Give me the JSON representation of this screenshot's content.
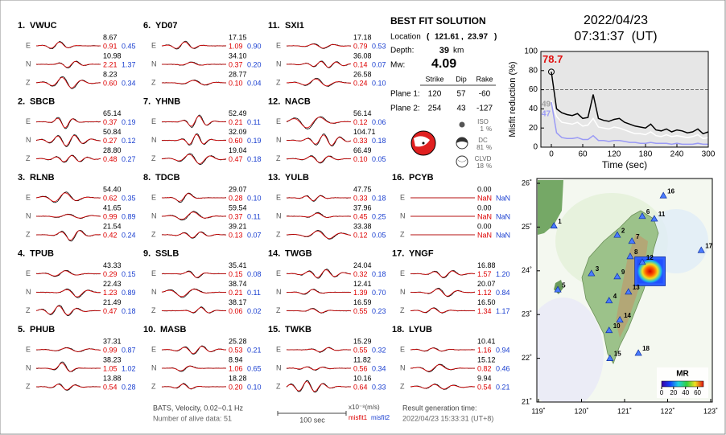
{
  "stations": [
    {
      "id": "1.",
      "code": "VWUC",
      "components": [
        {
          "comp": "E",
          "amplitude": "8.67",
          "misfit1": "0.91",
          "misfit2": "0.45"
        },
        {
          "comp": "N",
          "amplitude": "10.98",
          "misfit1": "2.21",
          "misfit2": "1.37"
        },
        {
          "comp": "Z",
          "amplitude": "8.23",
          "misfit1": "0.60",
          "misfit2": "0.34"
        }
      ]
    },
    {
      "id": "2.",
      "code": "SBCB",
      "components": [
        {
          "comp": "E",
          "amplitude": "65.14",
          "misfit1": "0.37",
          "misfit2": "0.19"
        },
        {
          "comp": "N",
          "amplitude": "50.84",
          "misfit1": "0.27",
          "misfit2": "0.12"
        },
        {
          "comp": "Z",
          "amplitude": "28.80",
          "misfit1": "0.48",
          "misfit2": "0.27"
        }
      ]
    },
    {
      "id": "3.",
      "code": "RLNB",
      "components": [
        {
          "comp": "E",
          "amplitude": "54.40",
          "misfit1": "0.62",
          "misfit2": "0.35"
        },
        {
          "comp": "N",
          "amplitude": "41.65",
          "misfit1": "0.99",
          "misfit2": "0.89"
        },
        {
          "comp": "Z",
          "amplitude": "21.54",
          "misfit1": "0.42",
          "misfit2": "0.24"
        }
      ]
    },
    {
      "id": "4.",
      "code": "TPUB",
      "components": [
        {
          "comp": "E",
          "amplitude": "43.33",
          "misfit1": "0.29",
          "misfit2": "0.15"
        },
        {
          "comp": "N",
          "amplitude": "22.43",
          "misfit1": "1.23",
          "misfit2": "0.89"
        },
        {
          "comp": "Z",
          "amplitude": "21.49",
          "misfit1": "0.47",
          "misfit2": "0.18"
        }
      ]
    },
    {
      "id": "5.",
      "code": "PHUB",
      "components": [
        {
          "comp": "E",
          "amplitude": "37.31",
          "misfit1": "0.99",
          "misfit2": "0.87"
        },
        {
          "comp": "N",
          "amplitude": "38.23",
          "misfit1": "1.05",
          "misfit2": "1.02"
        },
        {
          "comp": "Z",
          "amplitude": "13.88",
          "misfit1": "0.54",
          "misfit2": "0.28"
        }
      ]
    },
    {
      "id": "6.",
      "code": "YD07",
      "components": [
        {
          "comp": "E",
          "amplitude": "17.15",
          "misfit1": "1.09",
          "misfit2": "0.90"
        },
        {
          "comp": "N",
          "amplitude": "34.10",
          "misfit1": "0.37",
          "misfit2": "0.20"
        },
        {
          "comp": "Z",
          "amplitude": "28.77",
          "misfit1": "0.10",
          "misfit2": "0.04"
        }
      ]
    },
    {
      "id": "7.",
      "code": "YHNB",
      "components": [
        {
          "comp": "E",
          "amplitude": "52.49",
          "misfit1": "0.21",
          "misfit2": "0.11"
        },
        {
          "comp": "N",
          "amplitude": "32.09",
          "misfit1": "0.60",
          "misfit2": "0.19"
        },
        {
          "comp": "Z",
          "amplitude": "19.04",
          "misfit1": "0.47",
          "misfit2": "0.18"
        }
      ]
    },
    {
      "id": "8.",
      "code": "TDCB",
      "components": [
        {
          "comp": "E",
          "amplitude": "29.07",
          "misfit1": "0.28",
          "misfit2": "0.10"
        },
        {
          "comp": "N",
          "amplitude": "59.54",
          "misfit1": "0.37",
          "misfit2": "0.11"
        },
        {
          "comp": "Z",
          "amplitude": "39.21",
          "misfit1": "0.13",
          "misfit2": "0.07"
        }
      ]
    },
    {
      "id": "9.",
      "code": "SSLB",
      "components": [
        {
          "comp": "E",
          "amplitude": "35.41",
          "misfit1": "0.15",
          "misfit2": "0.08"
        },
        {
          "comp": "N",
          "amplitude": "38.74",
          "misfit1": "0.21",
          "misfit2": "0.11"
        },
        {
          "comp": "Z",
          "amplitude": "38.17",
          "misfit1": "0.06",
          "misfit2": "0.02"
        }
      ]
    },
    {
      "id": "10.",
      "code": "MASB",
      "components": [
        {
          "comp": "E",
          "amplitude": "25.28",
          "misfit1": "0.53",
          "misfit2": "0.21"
        },
        {
          "comp": "N",
          "amplitude": "8.94",
          "misfit1": "1.06",
          "misfit2": "0.65"
        },
        {
          "comp": "Z",
          "amplitude": "18.28",
          "misfit1": "0.20",
          "misfit2": "0.10"
        }
      ]
    },
    {
      "id": "11.",
      "code": "SXI1",
      "components": [
        {
          "comp": "E",
          "amplitude": "17.18",
          "misfit1": "0.79",
          "misfit2": "0.53"
        },
        {
          "comp": "N",
          "amplitude": "36.08",
          "misfit1": "0.14",
          "misfit2": "0.07"
        },
        {
          "comp": "Z",
          "amplitude": "26.58",
          "misfit1": "0.24",
          "misfit2": "0.10"
        }
      ]
    },
    {
      "id": "12.",
      "code": "NACB",
      "components": [
        {
          "comp": "E",
          "amplitude": "56.14",
          "misfit1": "0.12",
          "misfit2": "0.06"
        },
        {
          "comp": "N",
          "amplitude": "104.71",
          "misfit1": "0.33",
          "misfit2": "0.18"
        },
        {
          "comp": "Z",
          "amplitude": "66.49",
          "misfit1": "0.10",
          "misfit2": "0.05"
        }
      ]
    },
    {
      "id": "13.",
      "code": "YULB",
      "components": [
        {
          "comp": "E",
          "amplitude": "47.75",
          "misfit1": "0.33",
          "misfit2": "0.18"
        },
        {
          "comp": "N",
          "amplitude": "37.96",
          "misfit1": "0.45",
          "misfit2": "0.25"
        },
        {
          "comp": "Z",
          "amplitude": "33.38",
          "misfit1": "0.12",
          "misfit2": "0.05"
        }
      ]
    },
    {
      "id": "14.",
      "code": "TWGB",
      "components": [
        {
          "comp": "E",
          "amplitude": "24.04",
          "misfit1": "0.32",
          "misfit2": "0.18"
        },
        {
          "comp": "N",
          "amplitude": "12.41",
          "misfit1": "1.39",
          "misfit2": "0.70"
        },
        {
          "comp": "Z",
          "amplitude": "16.59",
          "misfit1": "0.55",
          "misfit2": "0.23"
        }
      ]
    },
    {
      "id": "15.",
      "code": "TWKB",
      "components": [
        {
          "comp": "E",
          "amplitude": "15.29",
          "misfit1": "0.55",
          "misfit2": "0.32"
        },
        {
          "comp": "N",
          "amplitude": "11.82",
          "misfit1": "0.56",
          "misfit2": "0.34"
        },
        {
          "comp": "Z",
          "amplitude": "10.16",
          "misfit1": "0.64",
          "misfit2": "0.33"
        }
      ]
    },
    {
      "id": "16.",
      "code": "PCYB",
      "components": [
        {
          "comp": "E",
          "amplitude": "0.00",
          "misfit1": "NaN",
          "misfit2": "NaN"
        },
        {
          "comp": "N",
          "amplitude": "0.00",
          "misfit1": "NaN",
          "misfit2": "NaN"
        },
        {
          "comp": "Z",
          "amplitude": "0.00",
          "misfit1": "NaN",
          "misfit2": "NaN"
        }
      ]
    },
    {
      "id": "17.",
      "code": "YNGF",
      "components": [
        {
          "comp": "E",
          "amplitude": "16.88",
          "misfit1": "1.57",
          "misfit2": "1.20"
        },
        {
          "comp": "N",
          "amplitude": "20.07",
          "misfit1": "1.12",
          "misfit2": "0.84"
        },
        {
          "comp": "Z",
          "amplitude": "16.50",
          "misfit1": "1.34",
          "misfit2": "1.17"
        }
      ]
    },
    {
      "id": "18.",
      "code": "LYUB",
      "components": [
        {
          "comp": "E",
          "amplitude": "10.41",
          "misfit1": "1.16",
          "misfit2": "0.94"
        },
        {
          "comp": "N",
          "amplitude": "15.12",
          "misfit1": "0.82",
          "misfit2": "0.46"
        },
        {
          "comp": "Z",
          "amplitude": "9.94",
          "misfit1": "0.54",
          "misfit2": "0.21"
        }
      ]
    }
  ],
  "solution": {
    "title": "BEST FIT SOLUTION",
    "location_label": "Location",
    "lon": 121.61,
    "lat": 23.97,
    "depth_label": "Depth:",
    "depth": 39,
    "depth_unit": "km",
    "mw_label": "Mw:",
    "mw": 4.09,
    "columns": [
      "Strike",
      "Dip",
      "Rake"
    ],
    "planes": [
      {
        "label": "Plane 1:",
        "values": [
          120,
          57,
          -60
        ]
      },
      {
        "label": "Plane 2:",
        "values": [
          254,
          43,
          -127
        ]
      }
    ],
    "components": [
      {
        "name": "ISO",
        "percent": 1
      },
      {
        "name": "DC",
        "percent": 81
      },
      {
        "name": "CLVD",
        "percent": 18
      }
    ],
    "percent_unit": "%"
  },
  "origin_time": {
    "date": "2022/04/23",
    "time": "07:31:37  (UT)"
  },
  "chart_data": {
    "type": "line",
    "ylabel": "Misfit reduction (%)",
    "xlabel": "Time (sec)",
    "x": [
      0,
      10,
      20,
      30,
      40,
      50,
      60,
      70,
      80,
      90,
      100,
      110,
      120,
      130,
      140,
      150,
      160,
      170,
      180,
      190,
      200,
      210,
      220,
      230,
      240,
      250,
      260,
      270,
      280,
      290,
      300
    ],
    "series": [
      {
        "color": "#000000",
        "values": [
          78.7,
          40,
          36,
          34,
          33,
          35,
          30,
          31,
          55,
          30,
          28,
          27,
          29,
          30,
          26,
          24,
          22,
          21,
          20,
          24,
          18,
          17,
          19,
          16,
          18,
          17,
          15,
          16,
          19,
          14,
          16
        ]
      },
      {
        "color": "#ffffff",
        "values": [
          49,
          32,
          26,
          25,
          24,
          26,
          22,
          23,
          30,
          21,
          20,
          19,
          21,
          20,
          18,
          16,
          14,
          14,
          13,
          16,
          12,
          11,
          13,
          11,
          12,
          11,
          10,
          11,
          13,
          9,
          10
        ]
      },
      {
        "color": "#9a9af5",
        "values": [
          47,
          15,
          10,
          9,
          9,
          10,
          8,
          8,
          12,
          7,
          7,
          6,
          7,
          7,
          6,
          5,
          5,
          4,
          4,
          5,
          4,
          4,
          4,
          3,
          4,
          3,
          3,
          3,
          4,
          3,
          3
        ]
      }
    ],
    "annotations": [
      {
        "text": "78.7",
        "color": "#e01010",
        "series": 0
      },
      {
        "text": "49",
        "color": "#a0a0a0",
        "series": 1
      },
      {
        "text": "47",
        "color": "#9a9af5",
        "series": 2
      }
    ],
    "threshold": 60,
    "xlim": [
      -20,
      300
    ],
    "ylim": [
      0,
      100
    ],
    "xticks": [
      0,
      60,
      120,
      180,
      240,
      300
    ],
    "yticks": [
      0,
      20,
      40,
      60,
      80,
      100
    ],
    "background": "#e6e6e6"
  },
  "map": {
    "lonlim": [
      119,
      123
    ],
    "latlim": [
      21,
      26
    ],
    "lonticks": [
      {
        "value": 119,
        "label": "119˚"
      },
      {
        "value": 120,
        "label": "120˚"
      },
      {
        "value": 121,
        "label": "121˚"
      },
      {
        "value": 122,
        "label": "122˚"
      },
      {
        "value": 123,
        "label": "123˚"
      }
    ],
    "latticks": [
      {
        "value": 21,
        "label": "21˚"
      },
      {
        "value": 22,
        "label": "22˚"
      },
      {
        "value": 23,
        "label": "23˚"
      },
      {
        "value": 24,
        "label": "24˚"
      },
      {
        "value": 25,
        "label": "25˚"
      },
      {
        "value": 26,
        "label": "26˚"
      }
    ],
    "stations": [
      {
        "label": "1",
        "lon": 119.36,
        "lat": 25.03
      },
      {
        "label": "2",
        "lon": 120.83,
        "lat": 24.82
      },
      {
        "label": "3",
        "lon": 120.23,
        "lat": 23.94
      },
      {
        "label": "4",
        "lon": 120.64,
        "lat": 23.32
      },
      {
        "label": "5",
        "lon": 119.45,
        "lat": 23.57
      },
      {
        "label": "6",
        "lon": 121.41,
        "lat": 25.25
      },
      {
        "label": "7",
        "lon": 121.17,
        "lat": 24.68
      },
      {
        "label": "8",
        "lon": 121.13,
        "lat": 24.33
      },
      {
        "label": "9",
        "lon": 120.83,
        "lat": 23.87
      },
      {
        "label": "10",
        "lon": 120.64,
        "lat": 22.64
      },
      {
        "label": "11",
        "lon": 121.69,
        "lat": 25.19
      },
      {
        "label": "12",
        "lon": 121.41,
        "lat": 24.2
      },
      {
        "label": "13",
        "lon": 121.09,
        "lat": 23.52
      },
      {
        "label": "14",
        "lon": 120.89,
        "lat": 22.88
      },
      {
        "label": "15",
        "lon": 120.66,
        "lat": 22.0
      },
      {
        "label": "16",
        "lon": 121.9,
        "lat": 25.72
      },
      {
        "label": "17",
        "lon": 122.78,
        "lat": 24.47
      },
      {
        "label": "18",
        "lon": 121.32,
        "lat": 22.12
      }
    ],
    "colorbar": {
      "title": "MR",
      "clim": [
        0,
        70
      ],
      "ticks": [
        0,
        20,
        40,
        60
      ]
    }
  },
  "footer": {
    "filter": "BATS, Velocity, 0.02~0.1 Hz",
    "alive": "Number of alive data: 51",
    "scale": "100 sec",
    "units": "x10⁻⁸(m/s)",
    "misfit1": "misfit1",
    "misfit2": "misfit2",
    "gen_label": "Result generation time:",
    "gen_time": "2022/04/23 15:33:31 (UT+8)"
  }
}
